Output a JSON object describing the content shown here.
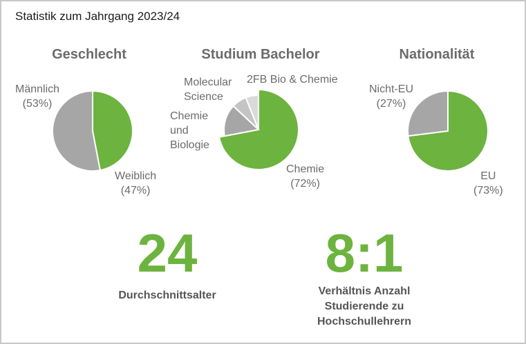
{
  "title": "Statistik zum Jahrgang 2023/24",
  "colors": {
    "green": "#6db33f",
    "gray": "#a6a6a6",
    "light_gray": "#c4c4c4",
    "lighter_gray": "#dadada",
    "text_gray": "#6b6b6b"
  },
  "chart_data": [
    {
      "type": "pie",
      "title": "Geschlecht",
      "slices": [
        {
          "label": "Weiblich",
          "percent_text": "(47%)",
          "value": 47,
          "color": "#6db33f"
        },
        {
          "label": "Männlich",
          "percent_text": "(53%)",
          "value": 53,
          "color": "#a6a6a6"
        }
      ]
    },
    {
      "type": "pie",
      "title": "Studium Bachelor",
      "slices": [
        {
          "label": "Chemie",
          "percent_text": "(72%)",
          "value": 72,
          "color": "#6db33f"
        },
        {
          "label_lines": [
            "Chemie",
            "und",
            "Biologie"
          ],
          "value": 15,
          "color": "#a6a6a6"
        },
        {
          "label_lines": [
            "Molecular",
            "Science"
          ],
          "value": 7,
          "color": "#c4c4c4"
        },
        {
          "label": "2FB Bio & Chemie",
          "value": 6,
          "color": "#dadada"
        }
      ]
    },
    {
      "type": "pie",
      "title": "Nationalität",
      "slices": [
        {
          "label": "EU",
          "percent_text": "(73%)",
          "value": 73,
          "color": "#6db33f"
        },
        {
          "label": "Nicht-EU",
          "percent_text": "(27%)",
          "value": 27,
          "color": "#a6a6a6"
        }
      ]
    }
  ],
  "stats": [
    {
      "value": "24",
      "caption_lines": [
        "Durchschnittsalter"
      ]
    },
    {
      "value": "8:1",
      "caption_lines": [
        "Verhältnis Anzahl",
        "Studierende zu",
        "Hochschullehrern"
      ]
    }
  ]
}
